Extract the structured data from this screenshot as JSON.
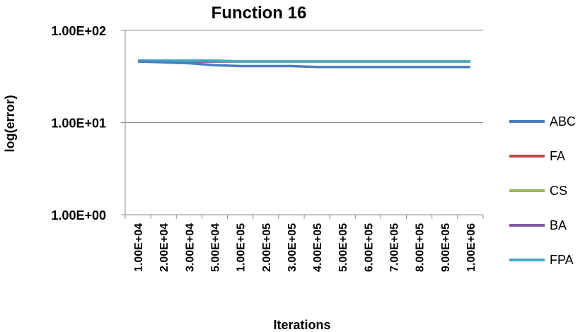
{
  "chart_data": {
    "type": "line",
    "title": "Function 16",
    "xlabel": "Iterations",
    "ylabel": "log(error)",
    "yscale": "log",
    "ylim": [
      1,
      100
    ],
    "yticks": [
      "1.00E+00",
      "1.00E+01",
      "1.00E+02"
    ],
    "categories": [
      "1.00E+04",
      "2.00E+04",
      "3.00E+04",
      "5.00E+04",
      "1.00E+05",
      "2.00E+05",
      "3.00E+05",
      "4.00E+05",
      "5.00E+05",
      "6.00E+05",
      "7.00E+05",
      "8.00E+05",
      "9.00E+05",
      "1.00E+06"
    ],
    "grid": "horizontal",
    "legend_position": "right",
    "series": [
      {
        "name": "ABC",
        "color": "#4a7ebb",
        "values": [
          46,
          45,
          44,
          42,
          41,
          41,
          41,
          40,
          40,
          40,
          40,
          40,
          40,
          40
        ]
      },
      {
        "name": "FA",
        "color": "#be4b48",
        "values": [
          46,
          46,
          46,
          46,
          46,
          46,
          46,
          46,
          46,
          46,
          46,
          46,
          46,
          46
        ]
      },
      {
        "name": "CS",
        "color": "#98b954",
        "values": [
          47,
          47,
          47,
          47,
          46,
          46,
          46,
          46,
          46,
          46,
          46,
          46,
          46,
          46
        ]
      },
      {
        "name": "BA",
        "color": "#7d60a0",
        "values": [
          46,
          46,
          46,
          46,
          46,
          46,
          46,
          46,
          46,
          46,
          46,
          46,
          46,
          46
        ]
      },
      {
        "name": "FPA",
        "color": "#46aac5",
        "values": [
          47,
          47,
          47,
          47,
          46,
          46,
          46,
          46,
          46,
          46,
          46,
          46,
          46,
          46
        ]
      }
    ]
  }
}
